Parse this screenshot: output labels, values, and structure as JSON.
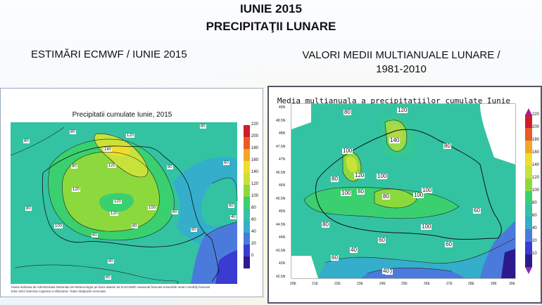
{
  "header": {
    "title_line1": "IUNIE 2015",
    "title_line2": "PRECIPITAŢII LUNARE"
  },
  "left": {
    "subtitle": "ESTIMĂRI ECMWF / IUNIE 2015",
    "map_title": "Precipitatii cumulate Iunie, 2015",
    "contour_labels": [
      "80",
      "60",
      "80",
      "120",
      "140",
      "120",
      "80",
      "60",
      "80",
      "120",
      "120",
      "100",
      "100",
      "120",
      "80",
      "60",
      "80",
      "60",
      "40",
      "60",
      "80",
      "60",
      "80"
    ],
    "legend": [
      "220",
      "200",
      "180",
      "160",
      "140",
      "120",
      "100",
      "80",
      "60",
      "40",
      "20",
      "0"
    ],
    "footnote_line1": "Harta realizata de Administratia Nationala de Meteorologie pe baza datelor de la ECMWF-seasonal forecast ensemble mean monthly forecast",
    "footnote_line2": "Este strict interzisa copierea si difuzarea. Toate drepturile rezervate."
  },
  "right": {
    "subtitle_line1": "VALORI MEDII MULTIANUALE LUNARE /",
    "subtitle_line2": "1981-2010",
    "map_title": "Media multianuala a precipitatiilor cumulate Iunie",
    "contour_labels": [
      "80",
      "120",
      "140",
      "80",
      "100",
      "120",
      "80",
      "100",
      "80",
      "100",
      "100",
      "100",
      "60",
      "80",
      "100",
      "80",
      "60",
      "60",
      "40",
      "60",
      "40",
      "40"
    ],
    "lat_labels": [
      "49N",
      "48.5N",
      "48N",
      "47.5N",
      "47N",
      "46.5N",
      "46N",
      "45.5N",
      "45N",
      "44.5N",
      "44N",
      "43.5N",
      "43N",
      "42.5N"
    ],
    "lon_labels": [
      "20E",
      "21E",
      "22E",
      "23E",
      "24E",
      "25E",
      "26E",
      "27E",
      "28E",
      "29E",
      "30E"
    ],
    "legend": [
      "220",
      "200",
      "180",
      "160",
      "140",
      "120",
      "100",
      "80",
      "60",
      "40",
      "20",
      "10"
    ]
  },
  "colors": {
    "c0": "#2c1a8c",
    "c20": "#3a3bd0",
    "c40": "#4a7bdc",
    "c60": "#34aecb",
    "c80": "#33c3a3",
    "c100": "#3ad06f",
    "c120": "#8cd93e",
    "c140": "#c9e23a",
    "c160": "#f0dd2e",
    "c180": "#f2a726",
    "c200": "#ea5a23",
    "c220": "#cc1f2a"
  }
}
